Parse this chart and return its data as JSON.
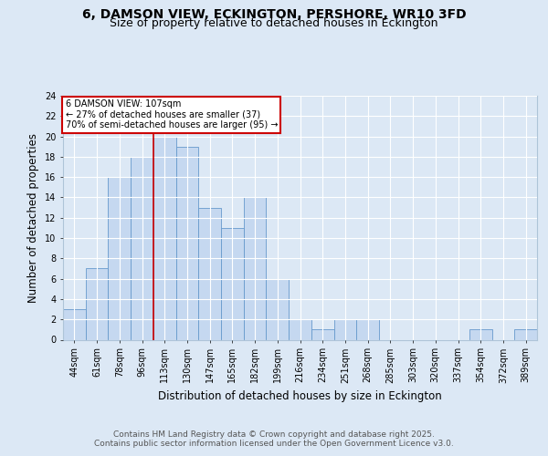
{
  "title_line1": "6, DAMSON VIEW, ECKINGTON, PERSHORE, WR10 3FD",
  "title_line2": "Size of property relative to detached houses in Eckington",
  "xlabel": "Distribution of detached houses by size in Eckington",
  "ylabel": "Number of detached properties",
  "categories": [
    "44sqm",
    "61sqm",
    "78sqm",
    "96sqm",
    "113sqm",
    "130sqm",
    "147sqm",
    "165sqm",
    "182sqm",
    "199sqm",
    "216sqm",
    "234sqm",
    "251sqm",
    "268sqm",
    "285sqm",
    "303sqm",
    "320sqm",
    "337sqm",
    "354sqm",
    "372sqm",
    "389sqm"
  ],
  "values": [
    3,
    7,
    16,
    18,
    20,
    19,
    13,
    11,
    14,
    6,
    2,
    1,
    2,
    2,
    0,
    0,
    0,
    0,
    1,
    0,
    1
  ],
  "bar_color": "#c5d8f0",
  "bar_edge_color": "#6699cc",
  "vline_x": 4.0,
  "vline_color": "#cc0000",
  "annotation_text": "6 DAMSON VIEW: 107sqm\n← 27% of detached houses are smaller (37)\n70% of semi-detached houses are larger (95) →",
  "annotation_box_color": "#ffffff",
  "annotation_box_edge": "#cc0000",
  "ylim": [
    0,
    24
  ],
  "yticks": [
    0,
    2,
    4,
    6,
    8,
    10,
    12,
    14,
    16,
    18,
    20,
    22,
    24
  ],
  "footer_line1": "Contains HM Land Registry data © Crown copyright and database right 2025.",
  "footer_line2": "Contains public sector information licensed under the Open Government Licence v3.0.",
  "bg_color": "#dce8f5",
  "plot_bg_color": "#dce8f5",
  "grid_color": "#ffffff",
  "title_fontsize": 10,
  "subtitle_fontsize": 9,
  "label_fontsize": 8.5,
  "tick_fontsize": 7,
  "footer_fontsize": 6.5
}
